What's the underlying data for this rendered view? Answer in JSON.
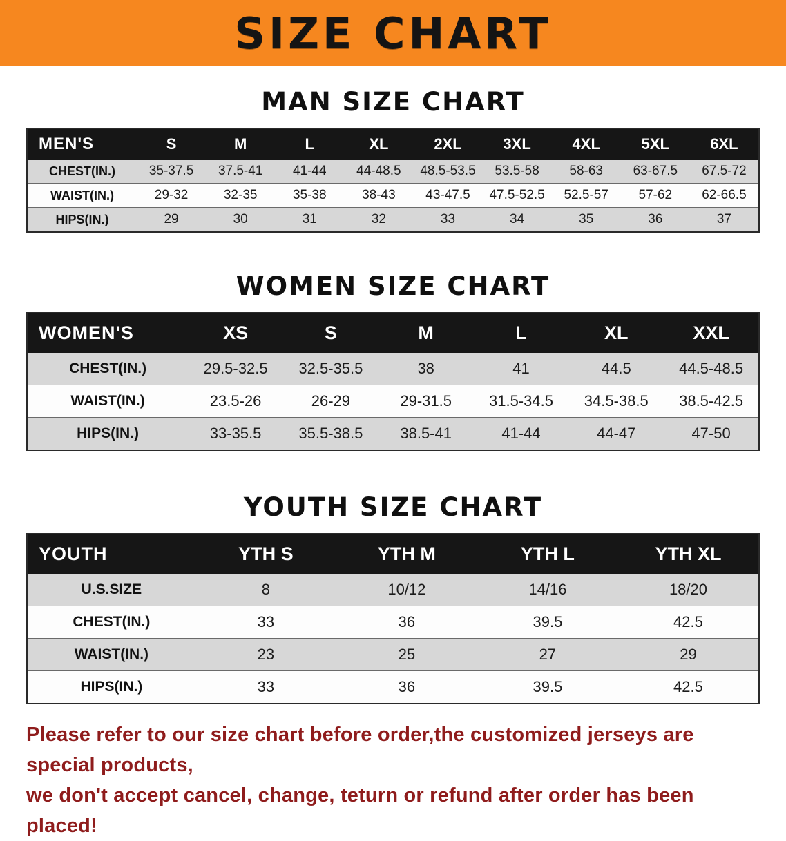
{
  "banner": {
    "title": "SIZE CHART"
  },
  "colors": {
    "banner_bg": "#f6871f",
    "header_row_bg": "#161616",
    "stripe_bg": "#d7d7d7",
    "footer_text": "#8f1c1c"
  },
  "sections": [
    {
      "title": "MAN SIZE CHART",
      "header_label": "MEN'S",
      "columns": [
        "S",
        "M",
        "L",
        "XL",
        "2XL",
        "3XL",
        "4XL",
        "5XL",
        "6XL"
      ],
      "rows": [
        {
          "label": "CHEST(IN.)",
          "values": [
            "35-37.5",
            "37.5-41",
            "41-44",
            "44-48.5",
            "48.5-53.5",
            "53.5-58",
            "58-63",
            "63-67.5",
            "67.5-72"
          ]
        },
        {
          "label": "WAIST(IN.)",
          "values": [
            "29-32",
            "32-35",
            "35-38",
            "38-43",
            "43-47.5",
            "47.5-52.5",
            "52.5-57",
            "57-62",
            "62-66.5"
          ]
        },
        {
          "label": "HIPS(IN.)",
          "values": [
            "29",
            "30",
            "31",
            "32",
            "33",
            "34",
            "35",
            "36",
            "37"
          ]
        }
      ]
    },
    {
      "title": "WOMEN SIZE CHART",
      "header_label": "WOMEN'S",
      "columns": [
        "XS",
        "S",
        "M",
        "L",
        "XL",
        "XXL"
      ],
      "rows": [
        {
          "label": "CHEST(IN.)",
          "values": [
            "29.5-32.5",
            "32.5-35.5",
            "38",
            "41",
            "44.5",
            "44.5-48.5"
          ]
        },
        {
          "label": "WAIST(IN.)",
          "values": [
            "23.5-26",
            "26-29",
            "29-31.5",
            "31.5-34.5",
            "34.5-38.5",
            "38.5-42.5"
          ]
        },
        {
          "label": "HIPS(IN.)",
          "values": [
            "33-35.5",
            "35.5-38.5",
            "38.5-41",
            "41-44",
            "44-47",
            "47-50"
          ]
        }
      ]
    },
    {
      "title": "YOUTH SIZE CHART",
      "header_label": "YOUTH",
      "columns": [
        "YTH S",
        "YTH M",
        "YTH L",
        "YTH XL"
      ],
      "rows": [
        {
          "label": "U.S.SIZE",
          "values": [
            "8",
            "10/12",
            "14/16",
            "18/20"
          ]
        },
        {
          "label": "CHEST(IN.)",
          "values": [
            "33",
            "36",
            "39.5",
            "42.5"
          ]
        },
        {
          "label": "WAIST(IN.)",
          "values": [
            "23",
            "25",
            "27",
            "29"
          ]
        },
        {
          "label": "HIPS(IN.)",
          "values": [
            "33",
            "36",
            "39.5",
            "42.5"
          ]
        }
      ]
    }
  ],
  "footer": {
    "line1": "Please refer to our size chart before order,the customized jerseys are special products,",
    "line2": "we don't accept cancel, change, teturn or refund after order has been placed!"
  }
}
